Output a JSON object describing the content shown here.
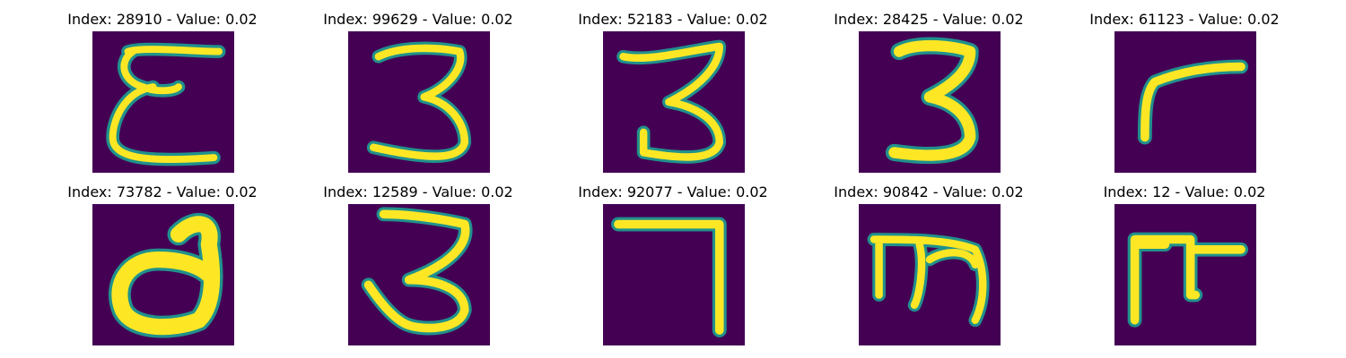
{
  "panels": [
    {
      "title": "Index: 28910 - Value: 0.02",
      "glyph": "cursive-E"
    },
    {
      "title": "Index: 99629 - Value: 0.02",
      "glyph": "three"
    },
    {
      "title": "Index: 52183 - Value: 0.02",
      "glyph": "three"
    },
    {
      "title": "Index: 28425 - Value: 0.02",
      "glyph": "three-bold"
    },
    {
      "title": "Index: 61123 - Value: 0.02",
      "glyph": "r-curve"
    },
    {
      "title": "Index: 73782 - Value: 0.02",
      "glyph": "d-loop"
    },
    {
      "title": "Index: 12589 - Value: 0.02",
      "glyph": "three-open"
    },
    {
      "title": "Index: 92077 - Value: 0.02",
      "glyph": "seven"
    },
    {
      "title": "Index: 90842 - Value: 0.02",
      "glyph": "m-shape"
    },
    {
      "title": "Index: 12 - Value: 0.02",
      "glyph": "pi-shape"
    }
  ],
  "colors": {
    "background": "#440154",
    "stroke_core": "#fde725",
    "stroke_edge": "#21918c"
  }
}
